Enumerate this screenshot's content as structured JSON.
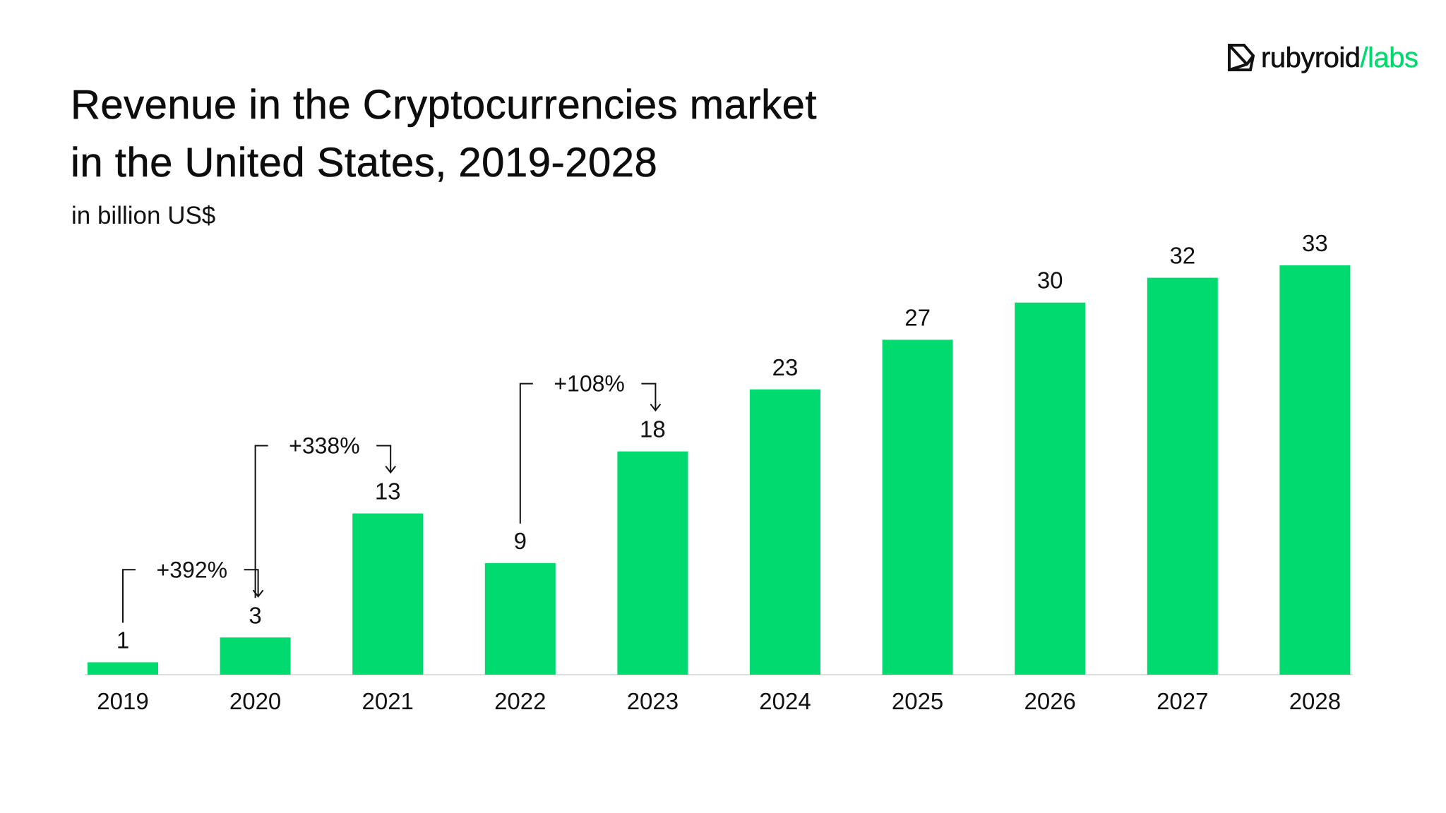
{
  "logo": {
    "icon": "ruby-gem-icon",
    "word_primary": "rubyroid",
    "word_accent": "/labs",
    "accent_color": "#00d96e"
  },
  "chart_data": {
    "type": "bar",
    "title": "Revenue in the Cryptocurrencies market in the United States, 2019-2028",
    "title_lines": [
      "Revenue in the Cryptocurrencies market",
      "in the United States, 2019-2028"
    ],
    "subtitle": "in billion US$",
    "xlabel": "",
    "ylabel": "in billion US$",
    "categories": [
      "2019",
      "2020",
      "2021",
      "2022",
      "2023",
      "2024",
      "2025",
      "2026",
      "2027",
      "2028"
    ],
    "values": [
      1,
      3,
      13,
      9,
      18,
      23,
      27,
      30,
      32,
      33
    ],
    "data_labels": [
      "1",
      "3",
      "13",
      "9",
      "18",
      "23",
      "27",
      "30",
      "32",
      "33"
    ],
    "ylim": [
      0,
      33
    ],
    "grid": false,
    "legend": "none",
    "bar_color": "#00da6f",
    "annotations": [
      {
        "from": "2019",
        "to": "2020",
        "label": "+392%"
      },
      {
        "from": "2020",
        "to": "2021",
        "label": "+338%"
      },
      {
        "from": "2022",
        "to": "2023",
        "label": "+108%"
      }
    ]
  }
}
